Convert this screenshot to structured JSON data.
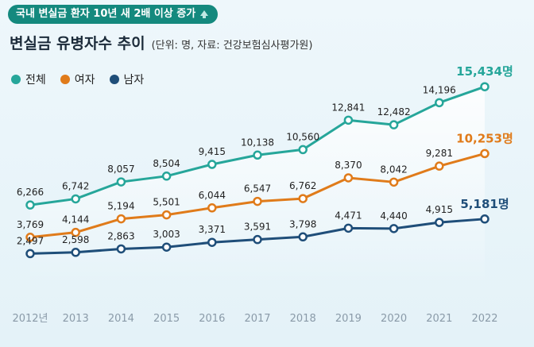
{
  "header": {
    "badge_text": "국내 변실금 환자 10년 새 2배 이상 증가",
    "badge_icon": "up-arrow-icon",
    "title": "변실금 유병자수 추이",
    "subtitle": "(단위: 명, 자료: 건강보험심사평가원)"
  },
  "colors": {
    "total": "#26a69a",
    "female": "#e07b1a",
    "male": "#1f4e79",
    "badge": "#14897e"
  },
  "chart_data": {
    "type": "line",
    "title": "변실금 유병자수 추이",
    "unit": "명",
    "categories": [
      "2012년",
      "2013",
      "2014",
      "2015",
      "2016",
      "2017",
      "2018",
      "2019",
      "2020",
      "2021",
      "2022"
    ],
    "series": [
      {
        "key": "total",
        "name": "전체",
        "values": [
          6266,
          6742,
          8057,
          8504,
          9415,
          10138,
          10560,
          12841,
          12482,
          14196,
          15434
        ],
        "labels": [
          "6,266",
          "6,742",
          "8,057",
          "8,504",
          "9,415",
          "10,138",
          "10,560",
          "12,841",
          "12,482",
          "14,196",
          "15,434명"
        ]
      },
      {
        "key": "female",
        "name": "여자",
        "values": [
          3769,
          4144,
          5194,
          5501,
          6044,
          6547,
          6762,
          8370,
          8042,
          9281,
          10253
        ],
        "labels": [
          "3,769",
          "4,144",
          "5,194",
          "5,501",
          "6,044",
          "6,547",
          "6,762",
          "8,370",
          "8,042",
          "9,281",
          "10,253명"
        ]
      },
      {
        "key": "male",
        "name": "남자",
        "values": [
          2497,
          2598,
          2863,
          3003,
          3371,
          3591,
          3798,
          4471,
          4440,
          4915,
          5181
        ],
        "labels": [
          "2,497",
          "2,598",
          "2,863",
          "3,003",
          "3,371",
          "3,591",
          "3,798",
          "4,471",
          "4,440",
          "4,915",
          "5,181명"
        ]
      }
    ],
    "ylim": [
      0,
      16000
    ],
    "legend_position": "top-left",
    "grid": false
  }
}
